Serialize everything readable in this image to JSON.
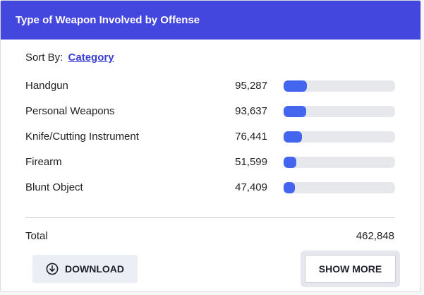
{
  "header": {
    "title": "Type of Weapon Involved by Offense"
  },
  "sort": {
    "label": "Sort By:",
    "value": "Category"
  },
  "rows": [
    {
      "label": "Handgun",
      "count": "95,287",
      "fraction": 0.2059
    },
    {
      "label": "Personal Weapons",
      "count": "93,637",
      "fraction": 0.2023
    },
    {
      "label": "Knife/Cutting Instrument",
      "count": "76,441",
      "fraction": 0.1652
    },
    {
      "label": "Firearm",
      "count": "51,599",
      "fraction": 0.1115
    },
    {
      "label": "Blunt Object",
      "count": "47,409",
      "fraction": 0.1024
    }
  ],
  "total": {
    "label": "Total",
    "value": "462,848"
  },
  "actions": {
    "download_label": "DOWNLOAD",
    "show_more_label": "SHOW MORE"
  },
  "colors": {
    "header": "#4447dd",
    "bar_fill": "#4466ee",
    "bar_track": "#e7e8ec"
  },
  "icons": {
    "download": "download-circle-icon"
  }
}
